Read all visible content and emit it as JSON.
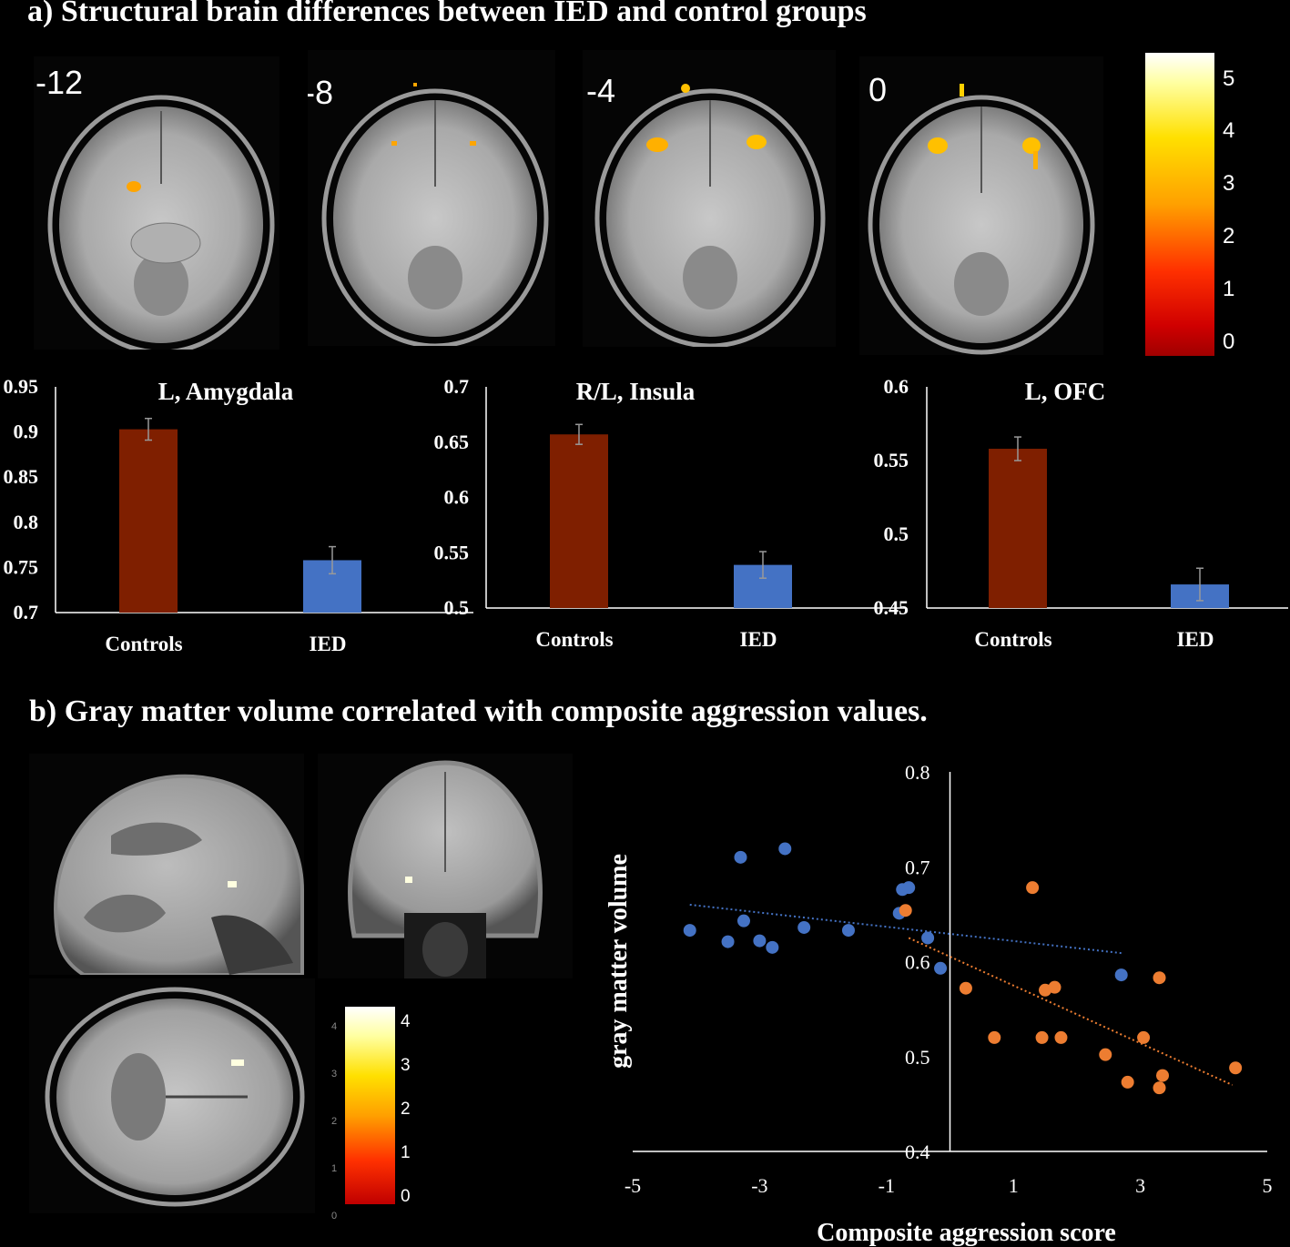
{
  "titles": {
    "a": "a) Structural brain differences between IED and  control groups",
    "b": "b) Gray matter volume correlated with composite aggression values."
  },
  "slices": [
    "-12",
    "-8",
    "-4",
    "0"
  ],
  "colorbar_top": {
    "ticks": [
      "5",
      "4",
      "3",
      "2",
      "1",
      "0"
    ],
    "colors": [
      "#8b0000",
      "#ff0000",
      "#ff8c00",
      "#ffd700",
      "#ffffe0"
    ]
  },
  "colorbar_bottom": {
    "ticks": [
      "4",
      "3",
      "2",
      "1",
      "0"
    ],
    "faint_ticks": [
      "4",
      "3",
      "2",
      "1",
      "0"
    ]
  },
  "colors": {
    "controls": "#7f1f00",
    "ied": "#4472c4",
    "scatter_ied": "#4472c4",
    "scatter_controls": "#ed7d31"
  },
  "chart_data": [
    {
      "type": "bar",
      "title": "L, Amygdala",
      "categories": [
        "Controls",
        "IED"
      ],
      "values": [
        0.903,
        0.758
      ],
      "errors": [
        0.012,
        0.015
      ],
      "ylim": [
        0.7,
        0.95
      ],
      "yticks": [
        "0.95",
        "0.9",
        "0.85",
        "0.8",
        "0.75",
        "0.7"
      ]
    },
    {
      "type": "bar",
      "title": "R/L, Insula",
      "categories": [
        "Controls",
        "IED"
      ],
      "values": [
        0.657,
        0.539
      ],
      "errors": [
        0.009,
        0.012
      ],
      "ylim": [
        0.5,
        0.7
      ],
      "yticks": [
        "0.7",
        "0.65",
        "0.6",
        "0.55",
        "0.5"
      ]
    },
    {
      "type": "bar",
      "title": "L, OFC",
      "categories": [
        "Controls",
        "IED"
      ],
      "values": [
        0.558,
        0.466
      ],
      "errors": [
        0.008,
        0.011
      ],
      "ylim": [
        0.45,
        0.6
      ],
      "yticks": [
        "0.6",
        "0.55",
        "0.5",
        "0.45"
      ]
    },
    {
      "type": "scatter",
      "xlabel": "Composite aggression score",
      "ylabel": "gray matter volume",
      "xlim": [
        -5,
        5
      ],
      "ylim": [
        0.4,
        0.8
      ],
      "xticks": [
        "-5",
        "-3",
        "-1",
        "1",
        "3",
        "5"
      ],
      "yticks": [
        "0.8",
        "0.7",
        "0.6",
        "0.5",
        "0.4"
      ],
      "series": [
        {
          "points": [
            [
              -4.1,
              0.633
            ],
            [
              -3.3,
              0.71
            ],
            [
              -3.25,
              0.643
            ],
            [
              -3.5,
              0.621
            ],
            [
              -3.0,
              0.622
            ],
            [
              -2.8,
              0.615
            ],
            [
              -2.6,
              0.719
            ],
            [
              -2.3,
              0.636
            ],
            [
              -1.6,
              0.633
            ],
            [
              -0.8,
              0.651
            ],
            [
              -0.75,
              0.676
            ],
            [
              -0.65,
              0.678
            ],
            [
              -0.35,
              0.625
            ],
            [
              -0.15,
              0.593
            ],
            [
              2.7,
              0.586
            ]
          ],
          "trend": [
            [
              -4.1,
              0.66
            ],
            [
              2.7,
              0.609
            ]
          ]
        },
        {
          "points": [
            [
              -0.7,
              0.654
            ],
            [
              0.25,
              0.572
            ],
            [
              0.7,
              0.52
            ],
            [
              1.3,
              0.678
            ],
            [
              1.45,
              0.52
            ],
            [
              1.5,
              0.57
            ],
            [
              1.65,
              0.573
            ],
            [
              1.75,
              0.52
            ],
            [
              2.45,
              0.502
            ],
            [
              2.8,
              0.473
            ],
            [
              3.05,
              0.52
            ],
            [
              3.3,
              0.583
            ],
            [
              3.35,
              0.48
            ],
            [
              3.3,
              0.467
            ],
            [
              4.5,
              0.488
            ]
          ],
          "trend": [
            [
              -0.65,
              0.625
            ],
            [
              4.45,
              0.47
            ]
          ]
        }
      ]
    }
  ]
}
